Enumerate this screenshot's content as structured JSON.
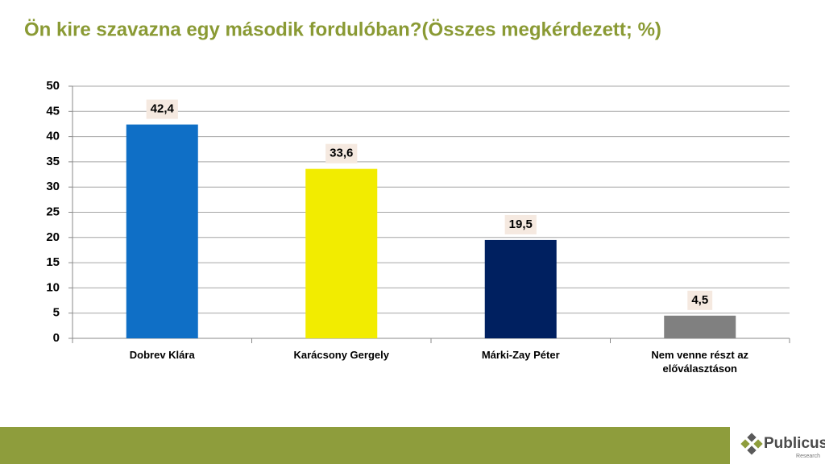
{
  "chart_data": {
    "type": "bar",
    "title": "Ön kire szavazna egy második fordulóban?(Összes megkérdezett; %)",
    "categories": [
      "Dobrev Klára",
      "Karácsony Gergely",
      "Márki-Zay Péter",
      "Nem venne részt az előválasztáson"
    ],
    "values": [
      42.4,
      33.6,
      19.5,
      4.5
    ],
    "value_labels": [
      "42,4",
      "33,6",
      "19,5",
      "4,5"
    ],
    "colors": [
      "#0f6fc6",
      "#f2ec00",
      "#002060",
      "#808080"
    ],
    "ylim": [
      0,
      50
    ],
    "yticks": [
      0,
      5,
      10,
      15,
      20,
      25,
      30,
      35,
      40,
      45,
      50
    ],
    "grid": true
  },
  "brand": {
    "name": "Publicus",
    "sub": "Research"
  }
}
